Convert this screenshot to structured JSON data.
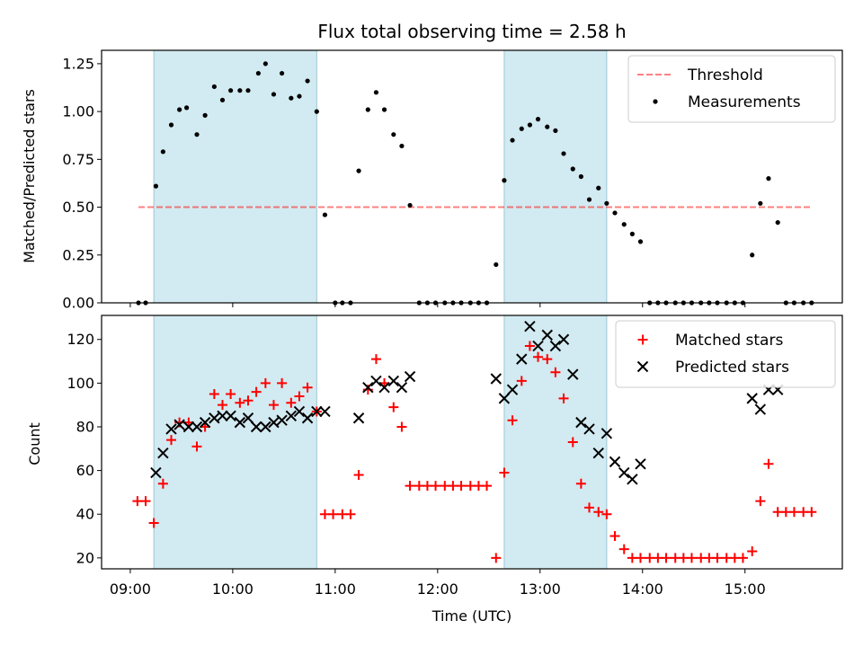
{
  "chart_data": {
    "type": "scatter",
    "title": "Flux total observing time = 2.58 h",
    "xlabel": "Time (UTC)",
    "x_tick_labels": [
      "09:00",
      "10:00",
      "11:00",
      "12:00",
      "13:00",
      "14:00",
      "15:00"
    ],
    "x_tick_hours": [
      9,
      10,
      11,
      12,
      13,
      14,
      15
    ],
    "xlim": [
      8.72,
      15.95
    ],
    "shaded_intervals": [
      [
        9.23,
        10.82
      ],
      [
        12.65,
        13.65
      ]
    ],
    "shade_color": "#add8e6",
    "panels": [
      {
        "name": "ratio",
        "ylabel": "Matched/Predicted stars",
        "ylim": [
          0,
          1.32
        ],
        "y_ticks": [
          0,
          0.25,
          0.5,
          0.75,
          1.0,
          1.25
        ],
        "y_tick_labels": [
          "0.00",
          "0.25",
          "0.50",
          "0.75",
          "1.00",
          "1.25"
        ],
        "legend": {
          "position": "upper right",
          "entries": [
            "Threshold",
            "Measurements"
          ]
        },
        "threshold": {
          "name": "Threshold",
          "value": 0.5,
          "x_range": [
            9.08,
            15.65
          ],
          "color": "#ff0000",
          "alpha": 0.5,
          "style": "dashed"
        },
        "series": [
          {
            "name": "Measurements",
            "marker": "dot",
            "color": "#000000",
            "points": [
              [
                9.08,
                0
              ],
              [
                9.15,
                0
              ],
              [
                9.25,
                0.61
              ],
              [
                9.32,
                0.79
              ],
              [
                9.4,
                0.93
              ],
              [
                9.48,
                1.01
              ],
              [
                9.55,
                1.02
              ],
              [
                9.65,
                0.88
              ],
              [
                9.73,
                0.98
              ],
              [
                9.82,
                1.13
              ],
              [
                9.9,
                1.06
              ],
              [
                9.98,
                1.11
              ],
              [
                10.07,
                1.11
              ],
              [
                10.15,
                1.11
              ],
              [
                10.25,
                1.2
              ],
              [
                10.32,
                1.25
              ],
              [
                10.4,
                1.09
              ],
              [
                10.48,
                1.2
              ],
              [
                10.57,
                1.07
              ],
              [
                10.65,
                1.08
              ],
              [
                10.73,
                1.16
              ],
              [
                10.82,
                1.0
              ],
              [
                10.9,
                0.46
              ],
              [
                11.0,
                0
              ],
              [
                11.07,
                0
              ],
              [
                11.15,
                0
              ],
              [
                11.23,
                0.69
              ],
              [
                11.32,
                1.01
              ],
              [
                11.4,
                1.1
              ],
              [
                11.48,
                1.01
              ],
              [
                11.57,
                0.88
              ],
              [
                11.65,
                0.82
              ],
              [
                11.73,
                0.51
              ],
              [
                11.82,
                0
              ],
              [
                11.9,
                0
              ],
              [
                11.98,
                0
              ],
              [
                12.07,
                0
              ],
              [
                12.15,
                0
              ],
              [
                12.23,
                0
              ],
              [
                12.32,
                0
              ],
              [
                12.4,
                0
              ],
              [
                12.48,
                0
              ],
              [
                12.57,
                0.2
              ],
              [
                12.65,
                0.64
              ],
              [
                12.73,
                0.85
              ],
              [
                12.82,
                0.91
              ],
              [
                12.9,
                0.93
              ],
              [
                12.98,
                0.96
              ],
              [
                13.07,
                0.92
              ],
              [
                13.15,
                0.9
              ],
              [
                13.23,
                0.78
              ],
              [
                13.32,
                0.7
              ],
              [
                13.4,
                0.66
              ],
              [
                13.48,
                0.54
              ],
              [
                13.57,
                0.6
              ],
              [
                13.65,
                0.52
              ],
              [
                13.73,
                0.47
              ],
              [
                13.82,
                0.41
              ],
              [
                13.9,
                0.36
              ],
              [
                13.98,
                0.32
              ],
              [
                14.07,
                0
              ],
              [
                14.15,
                0
              ],
              [
                14.23,
                0
              ],
              [
                14.32,
                0
              ],
              [
                14.4,
                0
              ],
              [
                14.48,
                0
              ],
              [
                14.57,
                0
              ],
              [
                14.65,
                0
              ],
              [
                14.73,
                0
              ],
              [
                14.82,
                0
              ],
              [
                14.9,
                0
              ],
              [
                14.98,
                0
              ],
              [
                15.07,
                0.25
              ],
              [
                15.15,
                0.52
              ],
              [
                15.23,
                0.65
              ],
              [
                15.32,
                0.42
              ],
              [
                15.4,
                0
              ],
              [
                15.48,
                0
              ],
              [
                15.57,
                0
              ],
              [
                15.65,
                0
              ]
            ]
          }
        ]
      },
      {
        "name": "count",
        "ylabel": "Count",
        "ylim": [
          15,
          131
        ],
        "y_ticks": [
          20,
          40,
          60,
          80,
          100,
          120
        ],
        "y_tick_labels": [
          "20",
          "40",
          "60",
          "80",
          "100",
          "120"
        ],
        "legend": {
          "position": "upper right",
          "entries": [
            "Matched stars",
            "Predicted stars"
          ]
        },
        "series": [
          {
            "name": "Matched stars",
            "marker": "plus",
            "color": "#ff0000",
            "points": [
              [
                9.07,
                46
              ],
              [
                9.15,
                46
              ],
              [
                9.23,
                36
              ],
              [
                9.32,
                54
              ],
              [
                9.4,
                74
              ],
              [
                9.48,
                82
              ],
              [
                9.57,
                82
              ],
              [
                9.65,
                71
              ],
              [
                9.73,
                80
              ],
              [
                9.82,
                95
              ],
              [
                9.9,
                90
              ],
              [
                9.98,
                95
              ],
              [
                10.07,
                91
              ],
              [
                10.15,
                92
              ],
              [
                10.23,
                96
              ],
              [
                10.32,
                100
              ],
              [
                10.4,
                90
              ],
              [
                10.48,
                100
              ],
              [
                10.57,
                91
              ],
              [
                10.65,
                94
              ],
              [
                10.73,
                98
              ],
              [
                10.82,
                87
              ],
              [
                10.9,
                40
              ],
              [
                10.98,
                40
              ],
              [
                11.07,
                40
              ],
              [
                11.15,
                40
              ],
              [
                11.23,
                58
              ],
              [
                11.32,
                97
              ],
              [
                11.4,
                111
              ],
              [
                11.48,
                100
              ],
              [
                11.57,
                89
              ],
              [
                11.65,
                80
              ],
              [
                11.73,
                53
              ],
              [
                11.82,
                53
              ],
              [
                11.9,
                53
              ],
              [
                11.98,
                53
              ],
              [
                12.07,
                53
              ],
              [
                12.15,
                53
              ],
              [
                12.23,
                53
              ],
              [
                12.32,
                53
              ],
              [
                12.4,
                53
              ],
              [
                12.48,
                53
              ],
              [
                12.57,
                20
              ],
              [
                12.65,
                59
              ],
              [
                12.73,
                83
              ],
              [
                12.82,
                101
              ],
              [
                12.9,
                117
              ],
              [
                12.98,
                112
              ],
              [
                13.07,
                111
              ],
              [
                13.15,
                105
              ],
              [
                13.23,
                93
              ],
              [
                13.32,
                73
              ],
              [
                13.4,
                54
              ],
              [
                13.48,
                43
              ],
              [
                13.57,
                41
              ],
              [
                13.65,
                40
              ],
              [
                13.73,
                30
              ],
              [
                13.82,
                24
              ],
              [
                13.9,
                20
              ],
              [
                13.98,
                20
              ],
              [
                14.07,
                20
              ],
              [
                14.15,
                20
              ],
              [
                14.23,
                20
              ],
              [
                14.32,
                20
              ],
              [
                14.4,
                20
              ],
              [
                14.48,
                20
              ],
              [
                14.57,
                20
              ],
              [
                14.65,
                20
              ],
              [
                14.73,
                20
              ],
              [
                14.82,
                20
              ],
              [
                14.9,
                20
              ],
              [
                14.98,
                20
              ],
              [
                15.07,
                23
              ],
              [
                15.15,
                46
              ],
              [
                15.23,
                63
              ],
              [
                15.32,
                41
              ],
              [
                15.4,
                41
              ],
              [
                15.48,
                41
              ],
              [
                15.57,
                41
              ],
              [
                15.65,
                41
              ]
            ]
          },
          {
            "name": "Predicted stars",
            "marker": "x",
            "color": "#000000",
            "points": [
              [
                9.25,
                59
              ],
              [
                9.32,
                68
              ],
              [
                9.4,
                79
              ],
              [
                9.48,
                81
              ],
              [
                9.57,
                80
              ],
              [
                9.65,
                80
              ],
              [
                9.73,
                82
              ],
              [
                9.82,
                84
              ],
              [
                9.9,
                85
              ],
              [
                9.98,
                85
              ],
              [
                10.07,
                82
              ],
              [
                10.15,
                84
              ],
              [
                10.23,
                80
              ],
              [
                10.32,
                80
              ],
              [
                10.4,
                82
              ],
              [
                10.48,
                83
              ],
              [
                10.57,
                85
              ],
              [
                10.65,
                87
              ],
              [
                10.73,
                84
              ],
              [
                10.82,
                87
              ],
              [
                10.9,
                87
              ],
              [
                11.23,
                84
              ],
              [
                11.32,
                98
              ],
              [
                11.4,
                101
              ],
              [
                11.48,
                98
              ],
              [
                11.57,
                101
              ],
              [
                11.65,
                98
              ],
              [
                11.73,
                103
              ],
              [
                12.57,
                102
              ],
              [
                12.65,
                93
              ],
              [
                12.73,
                97
              ],
              [
                12.82,
                111
              ],
              [
                12.9,
                126
              ],
              [
                12.98,
                117
              ],
              [
                13.07,
                122
              ],
              [
                13.15,
                117
              ],
              [
                13.23,
                120
              ],
              [
                13.32,
                104
              ],
              [
                13.4,
                82
              ],
              [
                13.48,
                79
              ],
              [
                13.57,
                68
              ],
              [
                13.65,
                77
              ],
              [
                13.73,
                64
              ],
              [
                13.82,
                59
              ],
              [
                13.9,
                56
              ],
              [
                13.98,
                63
              ],
              [
                15.07,
                93
              ],
              [
                15.15,
                88
              ],
              [
                15.23,
                97
              ],
              [
                15.32,
                97
              ]
            ]
          }
        ]
      }
    ]
  }
}
